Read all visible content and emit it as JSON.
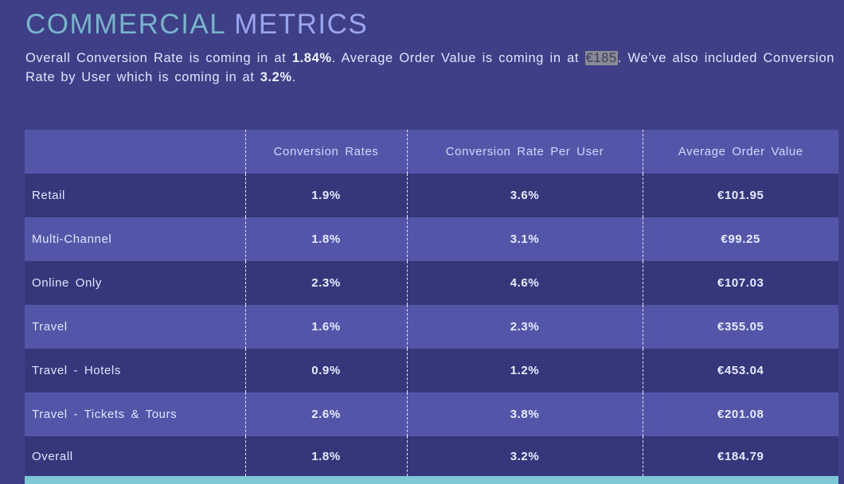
{
  "heading": {
    "word1": "COMMERCIAL",
    "word2": "METRICS"
  },
  "summary": {
    "t1": "Overall Conversion Rate is coming in at ",
    "v1": "1.84%",
    "t2": ". Average Order Value is coming in at ",
    "v2": "€185",
    "t3": ". We’ve also included Conversion Rate by User which is coming in at ",
    "v3": "3.2%",
    "t4": "."
  },
  "table": {
    "columns": [
      "",
      "Conversion Rates",
      "Conversion Rate Per User",
      "Average Order Value"
    ],
    "rows": [
      [
        "Retail",
        "1.9%",
        "3.6%",
        "€101.95"
      ],
      [
        "Multi-Channel",
        "1.8%",
        "3.1%",
        "€99.25"
      ],
      [
        "Online Only",
        "2.3%",
        "4.6%",
        "€107.03"
      ],
      [
        "Travel",
        "1.6%",
        "2.3%",
        "€355.05"
      ],
      [
        "Travel - Hotels",
        "0.9%",
        "1.2%",
        "€453.04"
      ],
      [
        "Travel - Tickets & Tours",
        "2.6%",
        "3.8%",
        "€201.08"
      ],
      [
        "Overall",
        "1.8%",
        "3.2%",
        "€184.79"
      ]
    ]
  },
  "colors": {
    "background": "#3e3f86",
    "title_word1": "#79b3cc",
    "title_word2": "#9ba4f0",
    "row_light": "#5356a8",
    "row_dark": "#36377a",
    "accent_bar": "#7ec8d8"
  }
}
